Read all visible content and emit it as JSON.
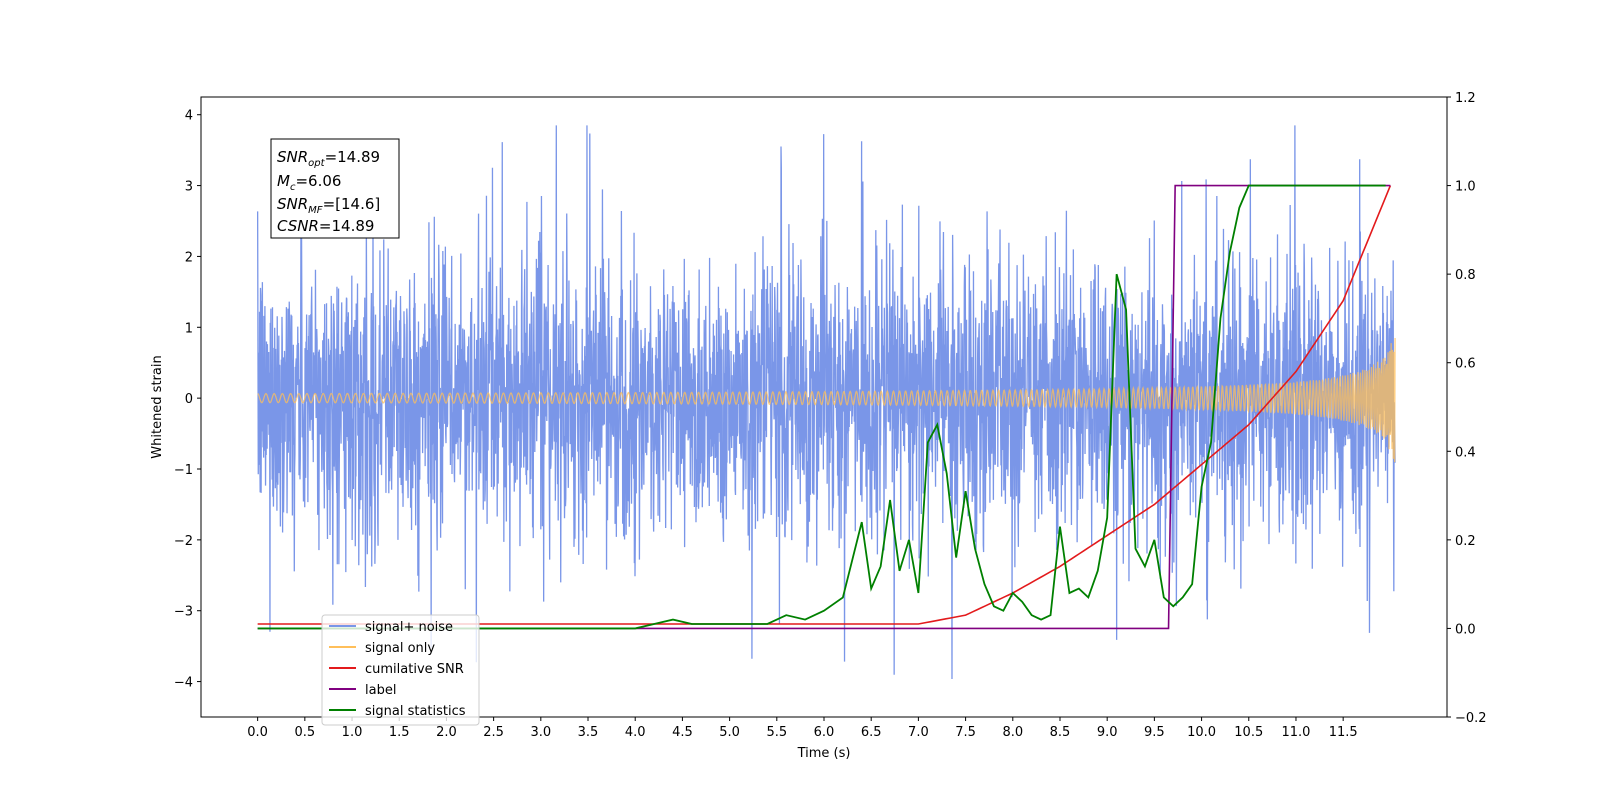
{
  "chart_data": {
    "type": "line",
    "xlabel": "Time (s)",
    "ylabel": "Whitened strain",
    "xlim": [
      -0.6,
      12.6
    ],
    "ylim": [
      -4.5,
      4.25
    ],
    "y2lim": [
      -0.2,
      1.2
    ],
    "x_ticks": [
      "0.0",
      "0.5",
      "1.0",
      "1.5",
      "2.0",
      "2.5",
      "3.0",
      "3.5",
      "4.0",
      "4.5",
      "5.0",
      "5.5",
      "6.0",
      "6.5",
      "7.0",
      "7.5",
      "8.0",
      "8.5",
      "9.0",
      "9.5",
      "10.0",
      "10.5",
      "11.0",
      "11.5"
    ],
    "y_ticks": [
      "4",
      "3",
      "2",
      "1",
      "0",
      "−1",
      "−2",
      "−3",
      "−4"
    ],
    "y2_ticks": [
      "1.2",
      "1.0",
      "0.8",
      "0.6",
      "0.4",
      "0.2",
      "0.0",
      "−0.2"
    ],
    "grid": false,
    "legend_position": "bottom-left",
    "annotation": {
      "snr_opt": "=14.89",
      "mc": "=6.06",
      "snr_mf": "=[14.6]",
      "csnr": "=14.89"
    },
    "series": [
      {
        "name": "signal+ noise",
        "color": "#7a96e8",
        "axis": "left",
        "kind": "noise",
        "x_range": [
          0.0,
          12.05
        ],
        "amplitude_envelope": 2.5,
        "peak_range": [
          -4.1,
          3.85
        ]
      },
      {
        "name": "signal only",
        "color": "#ffbf5a",
        "axis": "left",
        "kind": "chirp",
        "x_range": [
          0.0,
          12.05
        ],
        "amplitude_end": 1.0
      },
      {
        "name": "cumilative SNR",
        "color": "#e31a1c",
        "axis": "right",
        "x": [
          0.0,
          6.0,
          7.0,
          7.5,
          8.0,
          8.5,
          9.0,
          9.5,
          10.0,
          10.5,
          11.0,
          11.5,
          12.0
        ],
        "values": [
          0.01,
          0.01,
          0.01,
          0.03,
          0.08,
          0.14,
          0.21,
          0.28,
          0.37,
          0.46,
          0.58,
          0.74,
          1.0
        ]
      },
      {
        "name": "label",
        "color": "#800080",
        "axis": "right",
        "x": [
          0.0,
          9.65,
          9.72,
          12.0
        ],
        "values": [
          0.0,
          0.0,
          1.0,
          1.0
        ]
      },
      {
        "name": "signal statistics",
        "color": "#008000",
        "axis": "right",
        "x": [
          0.0,
          4.0,
          4.2,
          4.4,
          4.6,
          4.8,
          5.0,
          5.2,
          5.4,
          5.6,
          5.8,
          6.0,
          6.2,
          6.4,
          6.5,
          6.6,
          6.7,
          6.8,
          6.9,
          7.0,
          7.1,
          7.2,
          7.3,
          7.4,
          7.5,
          7.6,
          7.7,
          7.8,
          7.9,
          8.0,
          8.1,
          8.2,
          8.3,
          8.4,
          8.5,
          8.6,
          8.7,
          8.8,
          8.9,
          9.0,
          9.1,
          9.2,
          9.3,
          9.4,
          9.5,
          9.6,
          9.7,
          9.8,
          9.9,
          10.0,
          10.1,
          10.2,
          10.3,
          10.4,
          10.5,
          11.0,
          11.5,
          11.95
        ],
        "values": [
          0.0,
          0.0,
          0.01,
          0.02,
          0.01,
          0.01,
          0.01,
          0.01,
          0.01,
          0.03,
          0.02,
          0.04,
          0.07,
          0.24,
          0.09,
          0.14,
          0.29,
          0.13,
          0.2,
          0.08,
          0.42,
          0.46,
          0.35,
          0.16,
          0.31,
          0.18,
          0.1,
          0.05,
          0.04,
          0.08,
          0.06,
          0.03,
          0.02,
          0.03,
          0.23,
          0.08,
          0.09,
          0.07,
          0.13,
          0.25,
          0.8,
          0.72,
          0.18,
          0.14,
          0.2,
          0.07,
          0.05,
          0.07,
          0.1,
          0.32,
          0.42,
          0.7,
          0.85,
          0.95,
          1.0,
          1.0,
          1.0,
          1.0
        ]
      }
    ]
  }
}
